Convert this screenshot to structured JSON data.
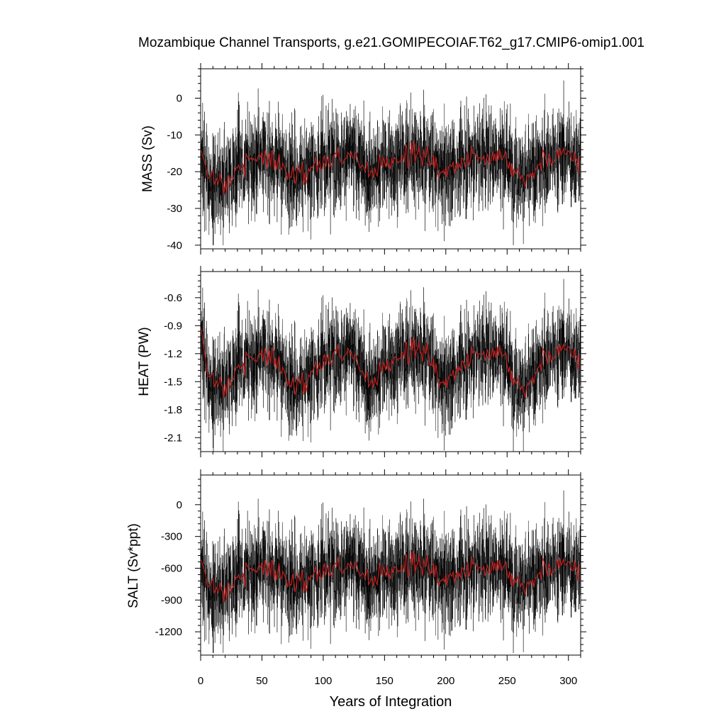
{
  "chart_data": {
    "type": "line",
    "title": "Mozambique Channel Transports, g.e21.GOMIPECOIAF.T62_g17.CMIP6-omip1.001",
    "xlabel": "Years of Integration",
    "xlim": [
      0,
      310
    ],
    "xticks": [
      "0",
      "50",
      "100",
      "150",
      "200",
      "250",
      "300"
    ],
    "legend": "none",
    "series_colors": {
      "monthly": "#000000",
      "annual_mean": "#cc1f1f"
    },
    "panels": [
      {
        "ylabel": "MASS (Sv)",
        "ylim": [
          -41,
          8
        ],
        "yticks": [
          "0",
          "-10",
          "-20",
          "-30",
          "-40"
        ],
        "monthly_range": [
          -40,
          8
        ],
        "annual_mean": [
          {
            "x": 0,
            "y": -15
          },
          {
            "x": 5,
            "y": -21
          },
          {
            "x": 10,
            "y": -22
          },
          {
            "x": 15,
            "y": -22
          },
          {
            "x": 20,
            "y": -23
          },
          {
            "x": 25,
            "y": -21
          },
          {
            "x": 30,
            "y": -19
          },
          {
            "x": 35,
            "y": -18
          },
          {
            "x": 40,
            "y": -17
          },
          {
            "x": 45,
            "y": -16
          },
          {
            "x": 50,
            "y": -16
          },
          {
            "x": 55,
            "y": -17
          },
          {
            "x": 60,
            "y": -16
          },
          {
            "x": 65,
            "y": -18
          },
          {
            "x": 70,
            "y": -20
          },
          {
            "x": 75,
            "y": -21
          },
          {
            "x": 80,
            "y": -21
          },
          {
            "x": 85,
            "y": -20
          },
          {
            "x": 90,
            "y": -19
          },
          {
            "x": 95,
            "y": -18
          },
          {
            "x": 100,
            "y": -18
          },
          {
            "x": 105,
            "y": -17
          },
          {
            "x": 110,
            "y": -16
          },
          {
            "x": 115,
            "y": -16
          },
          {
            "x": 120,
            "y": -15
          },
          {
            "x": 125,
            "y": -16
          },
          {
            "x": 130,
            "y": -18
          },
          {
            "x": 135,
            "y": -20
          },
          {
            "x": 140,
            "y": -20
          },
          {
            "x": 145,
            "y": -19
          },
          {
            "x": 150,
            "y": -18
          },
          {
            "x": 155,
            "y": -17
          },
          {
            "x": 160,
            "y": -17
          },
          {
            "x": 165,
            "y": -16
          },
          {
            "x": 170,
            "y": -16
          },
          {
            "x": 175,
            "y": -15
          },
          {
            "x": 180,
            "y": -15
          },
          {
            "x": 185,
            "y": -16
          },
          {
            "x": 190,
            "y": -18
          },
          {
            "x": 195,
            "y": -20
          },
          {
            "x": 200,
            "y": -21
          },
          {
            "x": 205,
            "y": -19
          },
          {
            "x": 210,
            "y": -18
          },
          {
            "x": 215,
            "y": -17
          },
          {
            "x": 220,
            "y": -16
          },
          {
            "x": 225,
            "y": -16
          },
          {
            "x": 230,
            "y": -15
          },
          {
            "x": 235,
            "y": -15
          },
          {
            "x": 240,
            "y": -16
          },
          {
            "x": 245,
            "y": -15
          },
          {
            "x": 250,
            "y": -17
          },
          {
            "x": 255,
            "y": -19
          },
          {
            "x": 260,
            "y": -21
          },
          {
            "x": 265,
            "y": -21
          },
          {
            "x": 270,
            "y": -20
          },
          {
            "x": 275,
            "y": -18
          },
          {
            "x": 280,
            "y": -17
          },
          {
            "x": 285,
            "y": -16
          },
          {
            "x": 290,
            "y": -16
          },
          {
            "x": 295,
            "y": -15
          },
          {
            "x": 300,
            "y": -15
          },
          {
            "x": 305,
            "y": -16
          },
          {
            "x": 310,
            "y": -17
          }
        ]
      },
      {
        "ylabel": "HEAT (PW)",
        "ylim": [
          -2.25,
          -0.32
        ],
        "yticks": [
          "-0.6",
          "-0.9",
          "-1.2",
          "-1.5",
          "-1.8",
          "-2.1"
        ],
        "monthly_range": [
          -2.25,
          -0.4
        ],
        "annual_mean": [
          {
            "x": 0,
            "y": -0.95
          },
          {
            "x": 5,
            "y": -1.4
          },
          {
            "x": 10,
            "y": -1.5
          },
          {
            "x": 15,
            "y": -1.5
          },
          {
            "x": 20,
            "y": -1.55
          },
          {
            "x": 25,
            "y": -1.45
          },
          {
            "x": 30,
            "y": -1.35
          },
          {
            "x": 35,
            "y": -1.3
          },
          {
            "x": 40,
            "y": -1.25
          },
          {
            "x": 45,
            "y": -1.25
          },
          {
            "x": 50,
            "y": -1.2
          },
          {
            "x": 55,
            "y": -1.25
          },
          {
            "x": 60,
            "y": -1.2
          },
          {
            "x": 65,
            "y": -1.35
          },
          {
            "x": 70,
            "y": -1.45
          },
          {
            "x": 75,
            "y": -1.55
          },
          {
            "x": 80,
            "y": -1.55
          },
          {
            "x": 85,
            "y": -1.5
          },
          {
            "x": 90,
            "y": -1.4
          },
          {
            "x": 95,
            "y": -1.35
          },
          {
            "x": 100,
            "y": -1.3
          },
          {
            "x": 105,
            "y": -1.25
          },
          {
            "x": 110,
            "y": -1.2
          },
          {
            "x": 115,
            "y": -1.2
          },
          {
            "x": 120,
            "y": -1.15
          },
          {
            "x": 125,
            "y": -1.25
          },
          {
            "x": 130,
            "y": -1.35
          },
          {
            "x": 135,
            "y": -1.5
          },
          {
            "x": 140,
            "y": -1.5
          },
          {
            "x": 145,
            "y": -1.45
          },
          {
            "x": 150,
            "y": -1.35
          },
          {
            "x": 155,
            "y": -1.3
          },
          {
            "x": 160,
            "y": -1.25
          },
          {
            "x": 165,
            "y": -1.2
          },
          {
            "x": 170,
            "y": -1.2
          },
          {
            "x": 175,
            "y": -1.15
          },
          {
            "x": 180,
            "y": -1.15
          },
          {
            "x": 185,
            "y": -1.2
          },
          {
            "x": 190,
            "y": -1.35
          },
          {
            "x": 195,
            "y": -1.5
          },
          {
            "x": 200,
            "y": -1.55
          },
          {
            "x": 205,
            "y": -1.45
          },
          {
            "x": 210,
            "y": -1.35
          },
          {
            "x": 215,
            "y": -1.3
          },
          {
            "x": 220,
            "y": -1.25
          },
          {
            "x": 225,
            "y": -1.2
          },
          {
            "x": 230,
            "y": -1.15
          },
          {
            "x": 235,
            "y": -1.15
          },
          {
            "x": 240,
            "y": -1.2
          },
          {
            "x": 245,
            "y": -1.15
          },
          {
            "x": 250,
            "y": -1.3
          },
          {
            "x": 255,
            "y": -1.45
          },
          {
            "x": 260,
            "y": -1.55
          },
          {
            "x": 265,
            "y": -1.55
          },
          {
            "x": 270,
            "y": -1.45
          },
          {
            "x": 275,
            "y": -1.35
          },
          {
            "x": 280,
            "y": -1.25
          },
          {
            "x": 285,
            "y": -1.2
          },
          {
            "x": 290,
            "y": -1.2
          },
          {
            "x": 295,
            "y": -1.15
          },
          {
            "x": 300,
            "y": -1.15
          },
          {
            "x": 305,
            "y": -1.2
          },
          {
            "x": 310,
            "y": -1.25
          }
        ]
      },
      {
        "ylabel": "SALT (Sv*ppt)",
        "ylim": [
          -1420,
          280
        ],
        "yticks": [
          "0",
          "-300",
          "-600",
          "-900",
          "-1200"
        ],
        "monthly_range": [
          -1400,
          280
        ],
        "annual_mean": [
          {
            "x": 0,
            "y": -550
          },
          {
            "x": 5,
            "y": -750
          },
          {
            "x": 10,
            "y": -780
          },
          {
            "x": 15,
            "y": -790
          },
          {
            "x": 20,
            "y": -800
          },
          {
            "x": 25,
            "y": -740
          },
          {
            "x": 30,
            "y": -690
          },
          {
            "x": 35,
            "y": -650
          },
          {
            "x": 40,
            "y": -620
          },
          {
            "x": 45,
            "y": -600
          },
          {
            "x": 50,
            "y": -590
          },
          {
            "x": 55,
            "y": -610
          },
          {
            "x": 60,
            "y": -590
          },
          {
            "x": 65,
            "y": -650
          },
          {
            "x": 70,
            "y": -700
          },
          {
            "x": 75,
            "y": -740
          },
          {
            "x": 80,
            "y": -740
          },
          {
            "x": 85,
            "y": -710
          },
          {
            "x": 90,
            "y": -680
          },
          {
            "x": 95,
            "y": -650
          },
          {
            "x": 100,
            "y": -640
          },
          {
            "x": 105,
            "y": -610
          },
          {
            "x": 110,
            "y": -590
          },
          {
            "x": 115,
            "y": -580
          },
          {
            "x": 120,
            "y": -560
          },
          {
            "x": 125,
            "y": -590
          },
          {
            "x": 130,
            "y": -640
          },
          {
            "x": 135,
            "y": -700
          },
          {
            "x": 140,
            "y": -710
          },
          {
            "x": 145,
            "y": -680
          },
          {
            "x": 150,
            "y": -650
          },
          {
            "x": 155,
            "y": -620
          },
          {
            "x": 160,
            "y": -610
          },
          {
            "x": 165,
            "y": -590
          },
          {
            "x": 170,
            "y": -580
          },
          {
            "x": 175,
            "y": -560
          },
          {
            "x": 180,
            "y": -550
          },
          {
            "x": 185,
            "y": -580
          },
          {
            "x": 190,
            "y": -640
          },
          {
            "x": 195,
            "y": -710
          },
          {
            "x": 200,
            "y": -740
          },
          {
            "x": 205,
            "y": -690
          },
          {
            "x": 210,
            "y": -650
          },
          {
            "x": 215,
            "y": -620
          },
          {
            "x": 220,
            "y": -600
          },
          {
            "x": 225,
            "y": -580
          },
          {
            "x": 230,
            "y": -560
          },
          {
            "x": 235,
            "y": -560
          },
          {
            "x": 240,
            "y": -580
          },
          {
            "x": 245,
            "y": -560
          },
          {
            "x": 250,
            "y": -620
          },
          {
            "x": 255,
            "y": -690
          },
          {
            "x": 260,
            "y": -740
          },
          {
            "x": 265,
            "y": -740
          },
          {
            "x": 270,
            "y": -700
          },
          {
            "x": 275,
            "y": -650
          },
          {
            "x": 280,
            "y": -610
          },
          {
            "x": 285,
            "y": -590
          },
          {
            "x": 290,
            "y": -580
          },
          {
            "x": 295,
            "y": -560
          },
          {
            "x": 300,
            "y": -560
          },
          {
            "x": 305,
            "y": -580
          },
          {
            "x": 310,
            "y": -600
          }
        ]
      }
    ]
  }
}
